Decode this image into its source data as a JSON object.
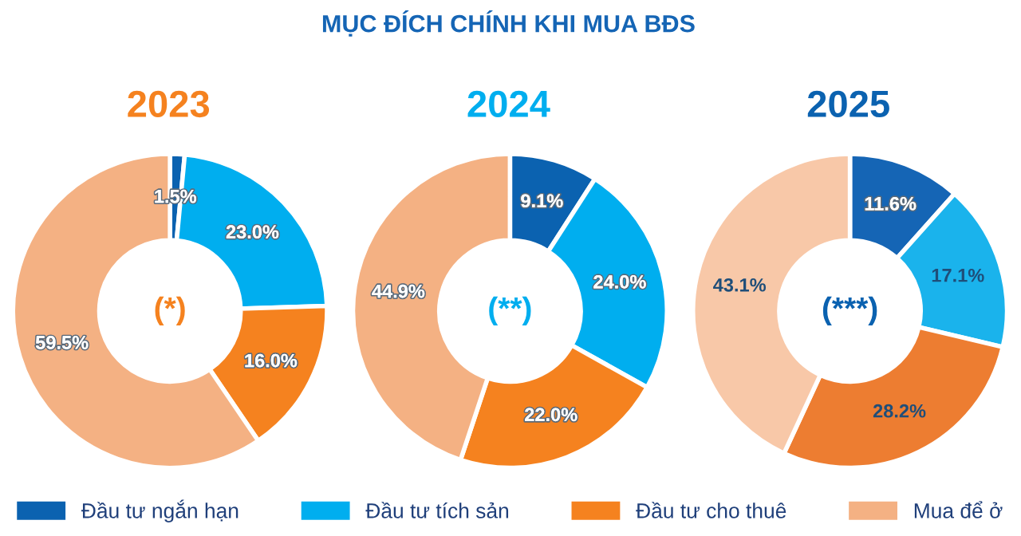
{
  "chart_data": [
    {
      "type": "donut",
      "subtitle": "2023",
      "annotations": [
        "(*)"
      ],
      "categories": [
        "Đầu tư ngắn hạn",
        "Đầu tư tích sản",
        "Đầu tư cho thuê",
        "Mua để ở"
      ],
      "values": [
        1.5,
        23.0,
        16.0,
        59.5
      ],
      "colors": [
        "#0b62b0",
        "#00aeef",
        "#f5821f",
        "#f4b183"
      ],
      "value_labels": [
        "1.5%",
        "23.0%",
        "16.0%",
        "59.5%"
      ],
      "legend": "bottom"
    },
    {
      "type": "donut",
      "title": "MỤC ĐÍCH CHÍNH KHI MUA BĐS",
      "subtitle": "2024",
      "annotations": [
        "(**)"
      ],
      "categories": [
        null,
        null,
        null,
        null
      ],
      "values": [
        9.1,
        24.0,
        22.0,
        44.9
      ],
      "colors": [
        "#0b62b0",
        "#00aeef",
        "#f5821f",
        "#f4b183"
      ],
      "value_labels": [
        "9.1%",
        "24.0%",
        "22.0%",
        "44.9%"
      ]
    },
    {
      "type": "donut",
      "subtitle": "2025",
      "annotations": [
        "(***)"
      ],
      "categories": [
        null,
        null,
        null,
        null
      ],
      "values": [
        11.6,
        17.1,
        28.2,
        43.1
      ],
      "colors": [
        "#1565b5",
        "#1ab3ec",
        "#ed7d31",
        "#f8c8a8"
      ],
      "value_labels": [
        "11.6%",
        "17.1%",
        "28.2%",
        "43.1%"
      ]
    }
  ]
}
